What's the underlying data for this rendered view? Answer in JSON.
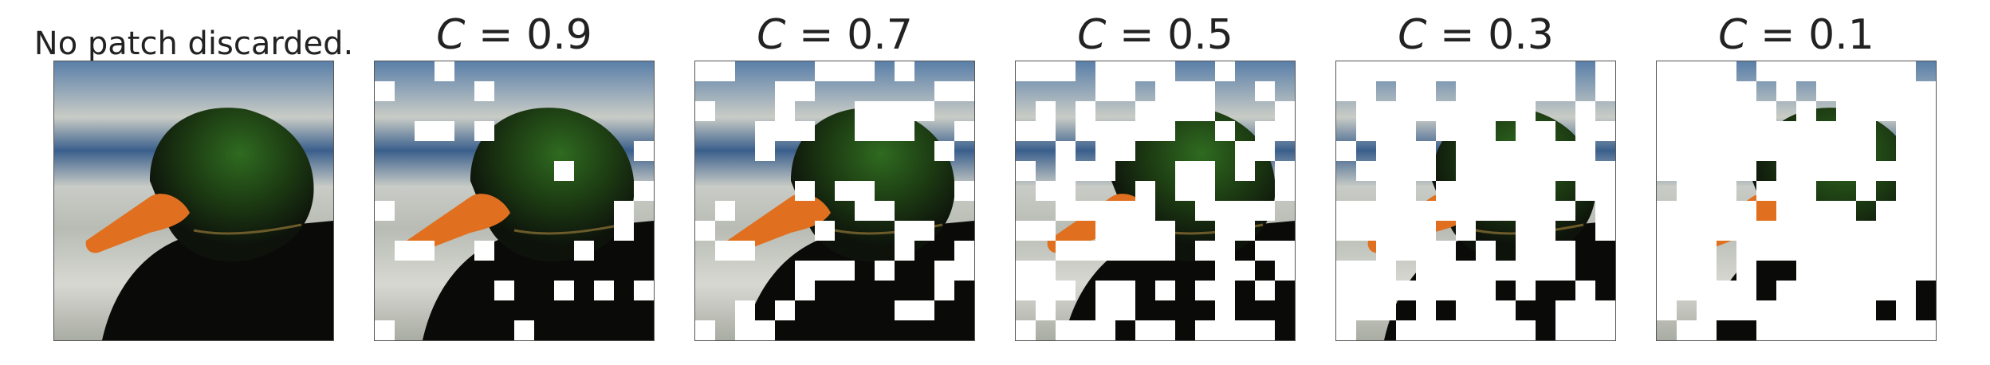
{
  "panels": [
    {
      "id": "none",
      "title": "No patch discarded.",
      "title_plain": true,
      "keep": 1.0
    },
    {
      "id": "c09",
      "title_var": "C",
      "title_eq": " = 0.9",
      "keep": 0.9
    },
    {
      "id": "c07",
      "title_var": "C",
      "title_eq": " = 0.7",
      "keep": 0.7
    },
    {
      "id": "c05",
      "title_var": "C",
      "title_eq": " = 0.5",
      "keep": 0.5
    },
    {
      "id": "c03",
      "title_var": "C",
      "title_eq": " = 0.3",
      "keep": 0.3
    },
    {
      "id": "c01",
      "title_var": "C",
      "title_eq": " = 0.1",
      "keep": 0.1
    }
  ],
  "image": {
    "subject": "mallard duck head on blurred water background",
    "colors": {
      "sky": "#5a7fa8",
      "water_light": "#c9ccc6",
      "water_dark": "#3a5f8c",
      "head_green": "#2f6b20",
      "head_dark": "#0d120b",
      "beak": "#e0701f",
      "body": "#0a0a08"
    }
  }
}
